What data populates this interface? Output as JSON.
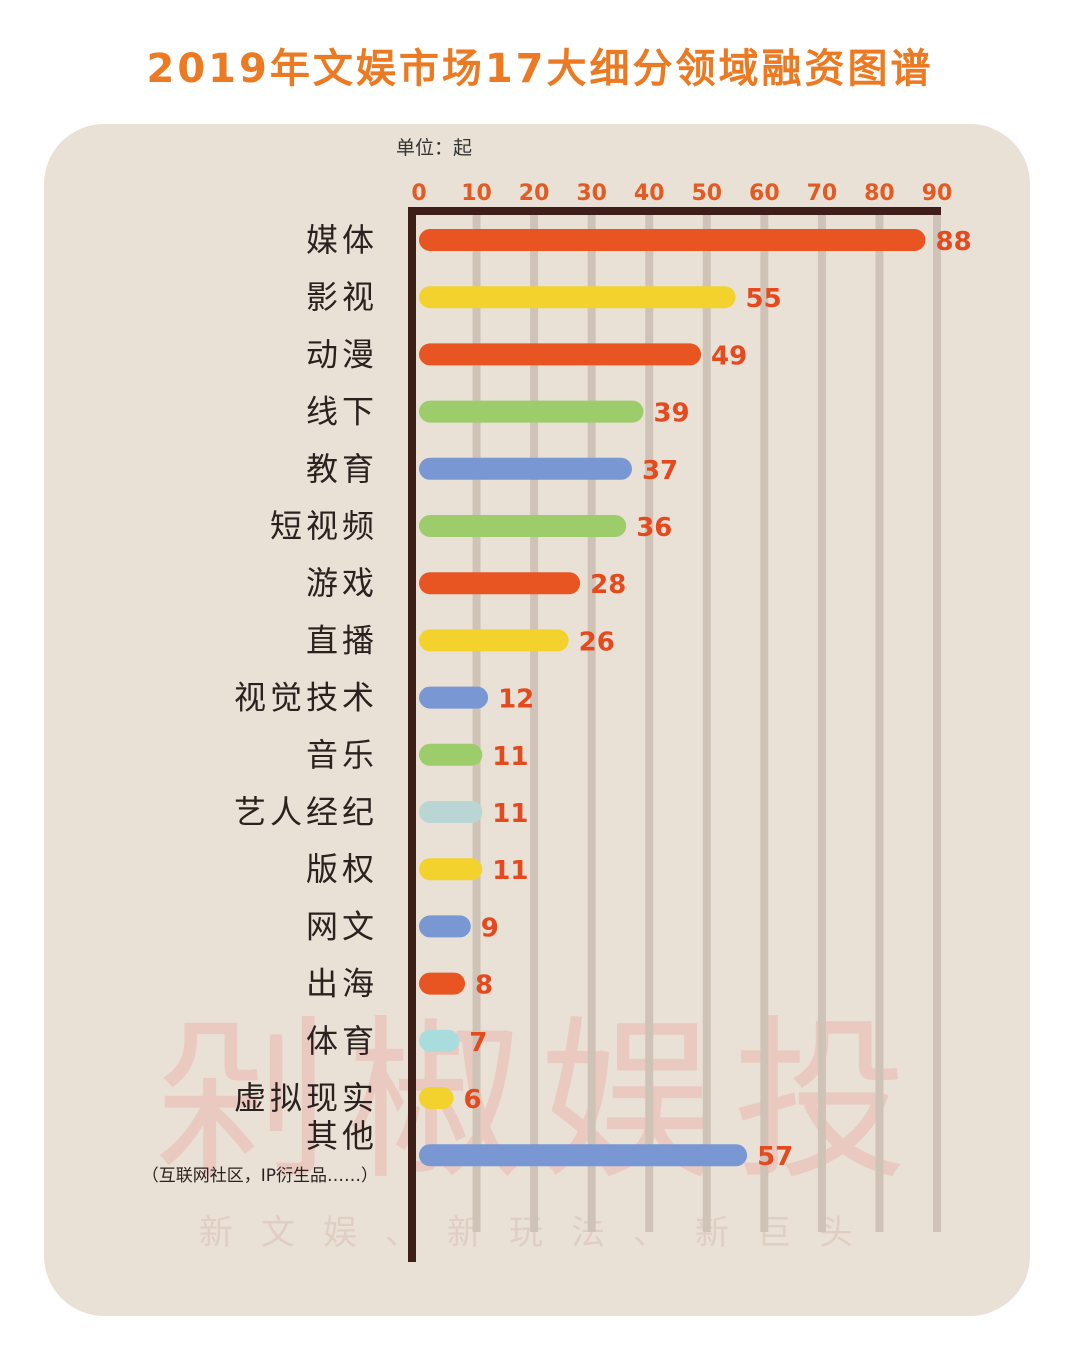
{
  "title": "2019年文娱市场17大细分领域融资图谱",
  "unit": "单位：起",
  "watermark": "剁椒娱投",
  "slogan": "新文娱、新玩法、新巨头",
  "chart_data": {
    "type": "bar",
    "orientation": "horizontal",
    "title": "2019年文娱市场17大细分领域融资图谱",
    "unit": "单位：起",
    "xlim": [
      0,
      90
    ],
    "ticks": [
      0,
      10,
      20,
      30,
      40,
      50,
      60,
      70,
      80,
      90
    ],
    "grid": true,
    "categories": [
      "媒体",
      "影视",
      "动漫",
      "线下",
      "教育",
      "短视频",
      "游戏",
      "直播",
      "视觉技术",
      "音乐",
      "艺人经纪",
      "版权",
      "网文",
      "出海",
      "体育",
      "虚拟现实",
      "其他"
    ],
    "category_notes": {
      "其他": "（互联网社区，IP衍生品……）"
    },
    "values": [
      88,
      55,
      49,
      39,
      37,
      36,
      28,
      26,
      12,
      11,
      11,
      11,
      9,
      8,
      7,
      6,
      57
    ],
    "colors": [
      "#e85522",
      "#f3d22e",
      "#e85522",
      "#9dcc6a",
      "#7897d3",
      "#9dcc6a",
      "#e85522",
      "#f3d22e",
      "#7897d3",
      "#9dcc6a",
      "#b9d6d4",
      "#f3d22e",
      "#7897d3",
      "#e85522",
      "#a9dcdc",
      "#f3d22e",
      "#7897d3"
    ]
  }
}
